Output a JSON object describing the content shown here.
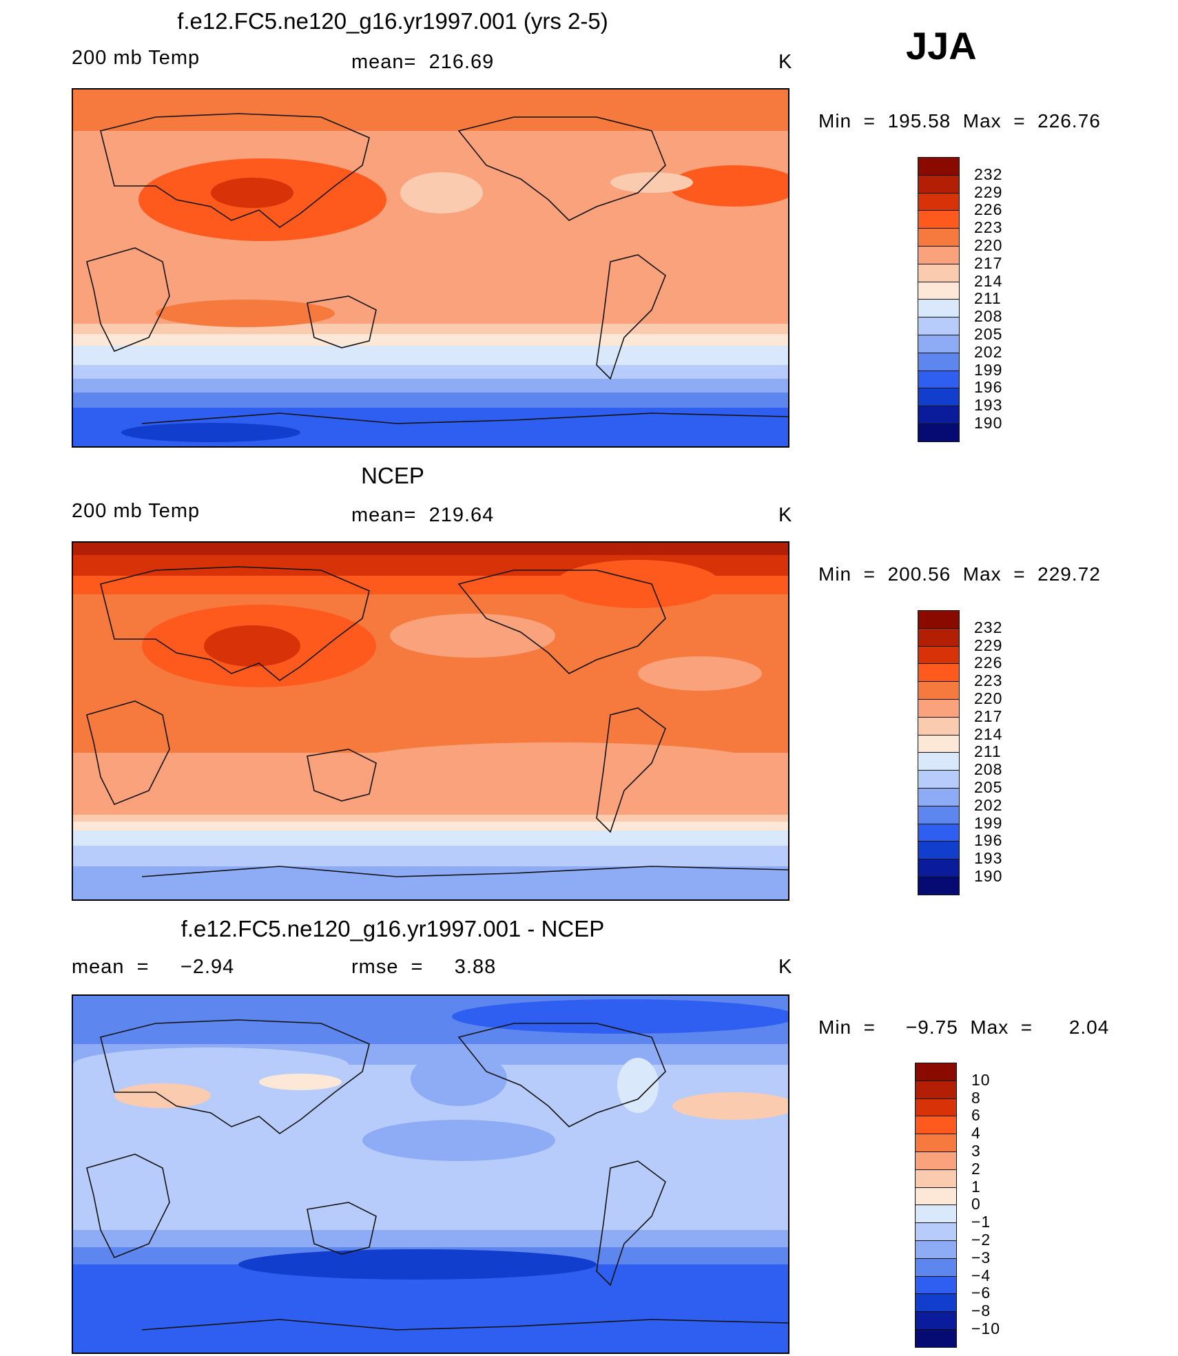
{
  "season": "JJA",
  "panels": [
    {
      "id": "model",
      "title": "f.e12.FC5.ne120_g16.yr1997.001 (yrs 2-5)",
      "left_label": "200 mb Temp",
      "center_label": "mean=  216.69",
      "right_label": "K",
      "minmax": "Min  =  195.58  Max  =  226.76",
      "field": "model"
    },
    {
      "id": "ncep",
      "title": "NCEP",
      "left_label": "200 mb Temp",
      "center_label": "mean=  219.64",
      "right_label": "K",
      "minmax": "Min  =  200.56  Max  =  229.72",
      "field": "ncep"
    },
    {
      "id": "diff",
      "title": "f.e12.FC5.ne120_g16.yr1997.001 - NCEP",
      "left_label": "mean  =     −2.94",
      "center_label": "rmse  =     3.88",
      "right_label": "K",
      "minmax": "Min  =     −9.75  Max  =      2.04",
      "field": "diff"
    }
  ],
  "legends": {
    "abs": {
      "labels": [
        "232",
        "229",
        "226",
        "223",
        "220",
        "217",
        "214",
        "211",
        "208",
        "205",
        "202",
        "199",
        "196",
        "193",
        "190"
      ],
      "colors": [
        "#8a0a00",
        "#b21f05",
        "#d83209",
        "#ff5a1e",
        "#f6793d",
        "#f9a27b",
        "#fbcbb0",
        "#fde8d8",
        "#d9e9fb",
        "#b7ccfa",
        "#8eabf6",
        "#5d86ee",
        "#2e5ff0",
        "#123ecd",
        "#0a1c9c",
        "#060a73"
      ]
    },
    "diff": {
      "labels": [
        "10",
        "8",
        "6",
        "4",
        "3",
        "2",
        "1",
        "0",
        "−1",
        "−2",
        "−3",
        "−4",
        "−6",
        "−8",
        "−10"
      ],
      "colors": [
        "#8a0a00",
        "#b21f05",
        "#d83209",
        "#ff5a1e",
        "#f6793d",
        "#f9a27b",
        "#fbcbb0",
        "#fde8d8",
        "#d9e9fb",
        "#b7ccfa",
        "#8eabf6",
        "#5d86ee",
        "#2e5ff0",
        "#123ecd",
        "#0a1c9c",
        "#060a73"
      ]
    }
  }
}
